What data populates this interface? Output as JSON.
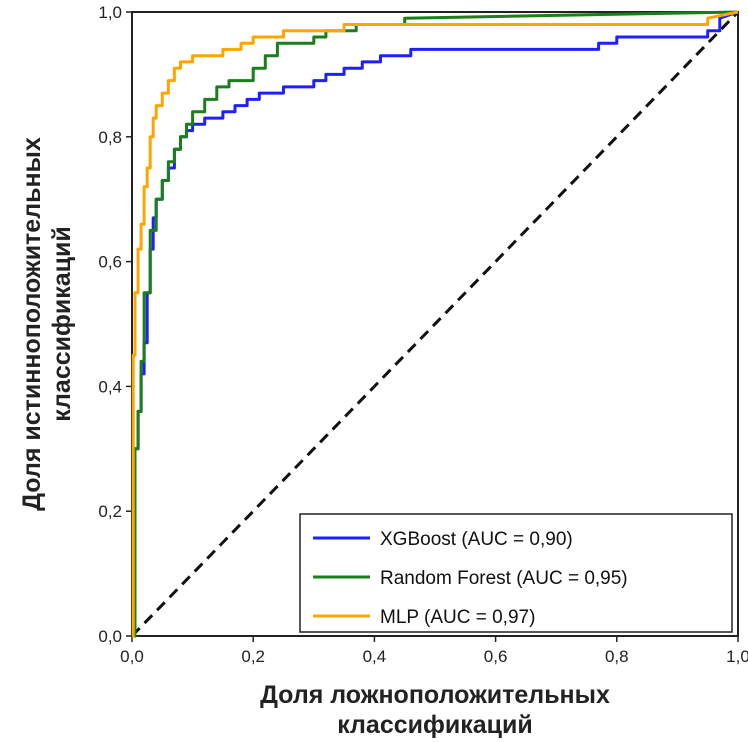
{
  "chart_data": {
    "type": "line",
    "xlabel_lines": [
      "Доля ложноположительных",
      "классификаций"
    ],
    "ylabel_lines": [
      "Доля истинноположительных",
      "классификаций"
    ],
    "xlim": [
      0,
      1
    ],
    "ylim": [
      0,
      1
    ],
    "x_ticks": [
      "0,0",
      "0,2",
      "0,4",
      "0,6",
      "0,8",
      "1,0"
    ],
    "y_ticks": [
      "0,0",
      "0,2",
      "0,4",
      "0,6",
      "0,8",
      "1,0"
    ],
    "grid": false,
    "legend_position": "bottom-right",
    "series": [
      {
        "name": "XGBoost (AUC = 0,90)",
        "color": "#1f1fff",
        "x": [
          0,
          0.005,
          0.005,
          0.01,
          0.01,
          0.015,
          0.015,
          0.02,
          0.02,
          0.025,
          0.025,
          0.03,
          0.03,
          0.035,
          0.035,
          0.04,
          0.04,
          0.05,
          0.05,
          0.06,
          0.06,
          0.07,
          0.07,
          0.08,
          0.08,
          0.09,
          0.09,
          0.1,
          0.1,
          0.12,
          0.12,
          0.15,
          0.15,
          0.17,
          0.17,
          0.19,
          0.19,
          0.21,
          0.21,
          0.25,
          0.25,
          0.3,
          0.3,
          0.32,
          0.32,
          0.35,
          0.35,
          0.38,
          0.38,
          0.41,
          0.41,
          0.46,
          0.46,
          0.77,
          0.77,
          0.8,
          0.8,
          0.95,
          0.95,
          0.97,
          0.97,
          1.0
        ],
        "y": [
          0,
          0,
          0.3,
          0.3,
          0.36,
          0.36,
          0.42,
          0.42,
          0.47,
          0.47,
          0.55,
          0.55,
          0.62,
          0.62,
          0.67,
          0.67,
          0.7,
          0.7,
          0.73,
          0.73,
          0.75,
          0.75,
          0.78,
          0.78,
          0.8,
          0.8,
          0.81,
          0.81,
          0.82,
          0.82,
          0.83,
          0.83,
          0.84,
          0.84,
          0.85,
          0.85,
          0.86,
          0.86,
          0.87,
          0.87,
          0.88,
          0.88,
          0.89,
          0.89,
          0.9,
          0.9,
          0.91,
          0.91,
          0.92,
          0.92,
          0.93,
          0.93,
          0.94,
          0.94,
          0.95,
          0.95,
          0.96,
          0.96,
          0.97,
          0.97,
          0.99,
          1.0
        ]
      },
      {
        "name": "Random Forest (AUC = 0,95)",
        "color": "#1a7f1a",
        "x": [
          0,
          0.005,
          0.005,
          0.01,
          0.01,
          0.015,
          0.015,
          0.02,
          0.02,
          0.03,
          0.03,
          0.04,
          0.04,
          0.05,
          0.05,
          0.06,
          0.06,
          0.07,
          0.07,
          0.08,
          0.08,
          0.09,
          0.09,
          0.1,
          0.1,
          0.12,
          0.12,
          0.14,
          0.14,
          0.16,
          0.16,
          0.2,
          0.2,
          0.22,
          0.22,
          0.24,
          0.24,
          0.3,
          0.3,
          0.32,
          0.32,
          0.37,
          0.37,
          0.45,
          0.45,
          1.0
        ],
        "y": [
          0,
          0,
          0.3,
          0.3,
          0.36,
          0.36,
          0.44,
          0.44,
          0.55,
          0.55,
          0.65,
          0.65,
          0.7,
          0.7,
          0.73,
          0.73,
          0.76,
          0.76,
          0.78,
          0.78,
          0.8,
          0.8,
          0.82,
          0.82,
          0.84,
          0.84,
          0.86,
          0.86,
          0.88,
          0.88,
          0.89,
          0.89,
          0.91,
          0.91,
          0.93,
          0.93,
          0.95,
          0.95,
          0.96,
          0.96,
          0.97,
          0.97,
          0.98,
          0.98,
          0.99,
          1.0
        ]
      },
      {
        "name": "MLP (AUC = 0,97)",
        "color": "#ffa500",
        "x": [
          0,
          0.002,
          0.002,
          0.005,
          0.005,
          0.01,
          0.01,
          0.015,
          0.015,
          0.02,
          0.02,
          0.025,
          0.025,
          0.03,
          0.03,
          0.035,
          0.035,
          0.04,
          0.04,
          0.05,
          0.05,
          0.06,
          0.06,
          0.07,
          0.07,
          0.08,
          0.08,
          0.1,
          0.1,
          0.15,
          0.15,
          0.18,
          0.18,
          0.2,
          0.2,
          0.25,
          0.25,
          0.35,
          0.35,
          0.95,
          0.95,
          1.0
        ],
        "y": [
          0,
          0,
          0.45,
          0.45,
          0.55,
          0.55,
          0.62,
          0.62,
          0.66,
          0.66,
          0.72,
          0.72,
          0.75,
          0.75,
          0.8,
          0.8,
          0.83,
          0.83,
          0.85,
          0.85,
          0.87,
          0.87,
          0.89,
          0.89,
          0.91,
          0.91,
          0.92,
          0.92,
          0.93,
          0.93,
          0.94,
          0.94,
          0.95,
          0.95,
          0.96,
          0.96,
          0.97,
          0.97,
          0.98,
          0.98,
          0.99,
          1.0
        ]
      },
      {
        "name": "",
        "style": "dashed",
        "color": "#111111",
        "x": [
          0,
          1
        ],
        "y": [
          0,
          1
        ]
      }
    ]
  }
}
